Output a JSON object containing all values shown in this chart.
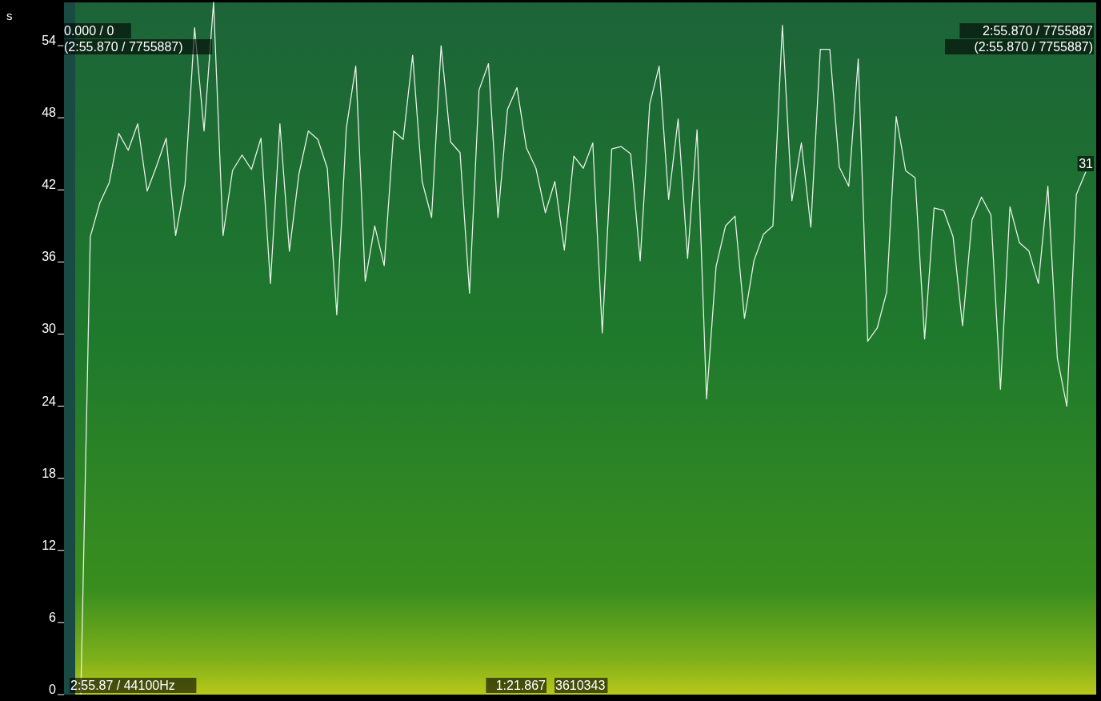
{
  "chart_data": {
    "type": "line",
    "ylabel": "s",
    "categories": [
      null,
      null,
      null,
      null,
      null,
      null,
      null,
      null,
      null,
      null,
      null,
      null,
      null,
      null,
      null,
      null,
      null,
      null,
      null,
      null,
      null,
      null,
      null,
      null,
      null,
      null,
      null,
      null,
      null,
      null,
      null,
      null,
      null,
      null,
      null,
      null,
      null,
      null,
      null,
      null,
      null,
      null,
      null,
      null,
      null,
      null,
      null,
      null,
      null,
      null,
      null,
      null,
      null,
      null,
      null,
      null,
      null,
      null,
      null,
      null,
      null,
      null,
      null,
      null,
      null,
      null,
      null,
      null,
      null,
      null,
      null,
      null,
      null,
      null,
      null,
      null,
      null,
      null,
      null,
      null,
      null,
      null,
      null,
      null,
      null,
      null,
      null,
      null,
      null,
      null,
      null,
      null,
      null,
      null,
      null,
      null,
      null,
      null,
      null,
      null,
      null,
      null,
      null,
      null,
      null,
      null,
      null
    ],
    "series": [
      {
        "color": "#e6efe6",
        "values": [
          0,
          38.1,
          40.9,
          42.6,
          46.7,
          45.3,
          47.5,
          41.9,
          44.0,
          46.3,
          38.2,
          42.5,
          55.5,
          46.9,
          57.6,
          38.2,
          43.6,
          44.9,
          43.7,
          46.3,
          34.2,
          47.5,
          36.9,
          43.3,
          46.9,
          46.2,
          43.8,
          31.6,
          47.1,
          52.3,
          34.4,
          39.0,
          35.7,
          46.9,
          46.2,
          53.2,
          42.7,
          39.7,
          54.0,
          46.0,
          45.1,
          33.4,
          50.3,
          52.5,
          39.7,
          48.7,
          50.5,
          45.5,
          43.8,
          40.1,
          42.7,
          37.0,
          44.8,
          43.8,
          45.9,
          30.1,
          45.4,
          45.6,
          45.0,
          36.1,
          49.1,
          52.3,
          41.2,
          47.9,
          36.3,
          47.0,
          24.6,
          35.6,
          39.0,
          39.8,
          31.3,
          36.1,
          38.3,
          39.0,
          55.7,
          41.1,
          45.9,
          38.9,
          53.7,
          53.7,
          43.9,
          42.3,
          52.9,
          29.4,
          30.5,
          33.5,
          48.1,
          43.6,
          43.0,
          29.6,
          40.5,
          40.3,
          38.1,
          30.7,
          39.5,
          41.4,
          39.9,
          25.4,
          40.6,
          37.6,
          36.9,
          34.2,
          42.3,
          28.0,
          24.0,
          41.6,
          43.5
        ]
      }
    ],
    "ylim": [
      0,
      57.6
    ],
    "yticks": [
      0,
      6,
      12,
      18,
      24,
      30,
      36,
      42,
      48,
      54
    ],
    "annotations": [
      "0.000 / 0",
      "(2:55.870 / 7755887)",
      "2:55.870 / 7755887",
      "(2:55.870 / 7755887)",
      "31",
      "2:55.87 / 44100Hz",
      "1:21.867",
      "3610343"
    ]
  }
}
